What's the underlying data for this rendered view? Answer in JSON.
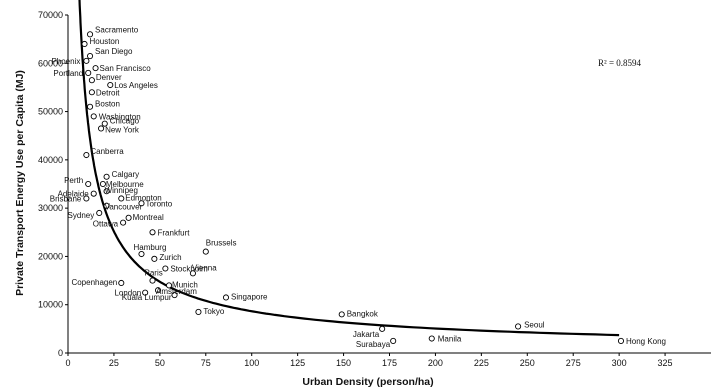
{
  "chart_data": {
    "type": "scatter",
    "title": "",
    "xlabel": "Urban Density (person/ha)",
    "ylabel": "Private Transport Energy Use per Capita (MJ)",
    "xlim": [
      0,
      350
    ],
    "ylim": [
      0,
      70000
    ],
    "x_ticks": [
      0,
      25,
      50,
      75,
      100,
      125,
      150,
      175,
      200,
      225,
      250,
      275,
      300,
      325
    ],
    "x_tick_labels": [
      "0",
      "25",
      "50",
      "75",
      "100",
      "125",
      "150",
      "175",
      "200",
      "225",
      "250",
      "275",
      "300",
      "325"
    ],
    "y_ticks": [
      0,
      10000,
      20000,
      30000,
      40000,
      50000,
      60000,
      70000
    ],
    "y_tick_labels": [
      "0",
      "10000",
      "20000",
      "30000",
      "40000",
      "50000",
      "60000",
      "70000"
    ],
    "annotation": "R² = 0.8594",
    "points": [
      {
        "label": "Sacramento",
        "x": 12,
        "y": 66000
      },
      {
        "label": "Houston",
        "x": 9,
        "y": 64000
      },
      {
        "label": "San Diego",
        "x": 12,
        "y": 61500
      },
      {
        "label": "Phoenix",
        "x": 10,
        "y": 60500
      },
      {
        "label": "San Francisco",
        "x": 15,
        "y": 59000
      },
      {
        "label": "Portland",
        "x": 11,
        "y": 58000
      },
      {
        "label": "Denver",
        "x": 13,
        "y": 56500
      },
      {
        "label": "Los Angeles",
        "x": 23,
        "y": 55500
      },
      {
        "label": "Detroit",
        "x": 13,
        "y": 54000
      },
      {
        "label": "Boston",
        "x": 12,
        "y": 51000
      },
      {
        "label": "Washington",
        "x": 14,
        "y": 49000
      },
      {
        "label": "Chicago",
        "x": 20,
        "y": 47500
      },
      {
        "label": "New York",
        "x": 18,
        "y": 46500
      },
      {
        "label": "Canberra",
        "x": 10,
        "y": 41000
      },
      {
        "label": "Calgary",
        "x": 21,
        "y": 36500
      },
      {
        "label": "Perth",
        "x": 11,
        "y": 35000
      },
      {
        "label": "Melbourne",
        "x": 19,
        "y": 35000
      },
      {
        "label": "Winnipeg",
        "x": 21,
        "y": 33500
      },
      {
        "label": "Adelaide",
        "x": 14,
        "y": 33000
      },
      {
        "label": "Edmonton",
        "x": 29,
        "y": 32000
      },
      {
        "label": "Brisbane",
        "x": 10,
        "y": 32000
      },
      {
        "label": "Toronto",
        "x": 40,
        "y": 31000
      },
      {
        "label": "Vancouver",
        "x": 21,
        "y": 30500
      },
      {
        "label": "Sydney",
        "x": 17,
        "y": 29000
      },
      {
        "label": "Montreal",
        "x": 33,
        "y": 28000
      },
      {
        "label": "Ottawa",
        "x": 30,
        "y": 27000
      },
      {
        "label": "Frankfurt",
        "x": 46,
        "y": 25000
      },
      {
        "label": "Brussels",
        "x": 75,
        "y": 21000
      },
      {
        "label": "Hamburg",
        "x": 40,
        "y": 20500
      },
      {
        "label": "Zurich",
        "x": 47,
        "y": 19500
      },
      {
        "label": "Stockholm",
        "x": 53,
        "y": 17500
      },
      {
        "label": "Vienna",
        "x": 68,
        "y": 16500
      },
      {
        "label": "Paris",
        "x": 46,
        "y": 15000
      },
      {
        "label": "Copenhagen",
        "x": 29,
        "y": 14500
      },
      {
        "label": "Munich",
        "x": 55,
        "y": 14000
      },
      {
        "label": "Amsterdam",
        "x": 49,
        "y": 13000
      },
      {
        "label": "London",
        "x": 42,
        "y": 12500
      },
      {
        "label": "Kuala Lumpur",
        "x": 58,
        "y": 12000
      },
      {
        "label": "Singapore",
        "x": 86,
        "y": 11500
      },
      {
        "label": "Tokyo",
        "x": 71,
        "y": 8500
      },
      {
        "label": "Bangkok",
        "x": 149,
        "y": 8000
      },
      {
        "label": "Jakarta",
        "x": 171,
        "y": 5000
      },
      {
        "label": "Seoul",
        "x": 245,
        "y": 5500
      },
      {
        "label": "Surabaya",
        "x": 177,
        "y": 2500
      },
      {
        "label": "Manila",
        "x": 198,
        "y": 3000
      },
      {
        "label": "Hong Kong",
        "x": 301,
        "y": 2500
      }
    ],
    "trendline": {
      "type": "power",
      "a": 300000,
      "b": -0.77,
      "x_from": 3.5,
      "x_to": 300
    }
  }
}
